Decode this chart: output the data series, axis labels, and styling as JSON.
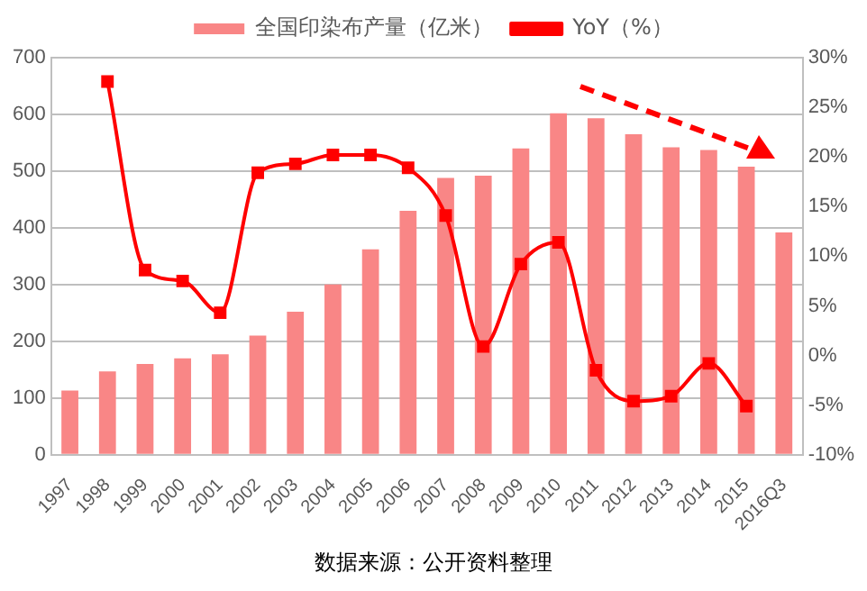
{
  "chart_data": {
    "type": "bar",
    "categories": [
      "1997",
      "1998",
      "1999",
      "2000",
      "2001",
      "2002",
      "2003",
      "2004",
      "2005",
      "2006",
      "2007",
      "2008",
      "2009",
      "2010",
      "2011",
      "2012",
      "2013",
      "2014",
      "2015",
      "2016Q3"
    ],
    "series": [
      {
        "name": "全国印染布产量（亿米）",
        "color": "#f98686",
        "values": [
          113,
          147,
          160,
          170,
          177,
          210,
          252,
          300,
          362,
          430,
          488,
          492,
          540,
          602,
          593,
          565,
          542,
          537,
          508,
          392
        ]
      },
      {
        "name": "YoY（%）",
        "type": "line",
        "axis": "y2",
        "color": "#ff0000",
        "values": [
          null,
          27.6,
          8.6,
          7.5,
          4.3,
          18.4,
          19.3,
          20.2,
          20.2,
          18.9,
          14.1,
          0.9,
          9.2,
          11.4,
          -1.5,
          -4.6,
          -4.1,
          -0.8,
          -5.1,
          null
        ]
      }
    ],
    "ylim": [
      0,
      700
    ],
    "yticks": [
      0,
      100,
      200,
      300,
      400,
      500,
      600,
      700
    ],
    "y2lim": [
      -10,
      30
    ],
    "y2ticks": [
      {
        "value": -10,
        "label": "-10%"
      },
      {
        "value": -5,
        "label": "-5%"
      },
      {
        "value": 0,
        "label": "0%"
      },
      {
        "value": 5,
        "label": "5%"
      },
      {
        "value": 10,
        "label": "10%"
      },
      {
        "value": 15,
        "label": "15%"
      },
      {
        "value": 20,
        "label": "20%"
      },
      {
        "value": 25,
        "label": "25%"
      },
      {
        "value": 30,
        "label": "30%"
      }
    ],
    "grid": "y",
    "legend": "top",
    "marker": "square",
    "line_style": "solid",
    "annotations": [
      "数据来源：公开资料整理"
    ]
  }
}
